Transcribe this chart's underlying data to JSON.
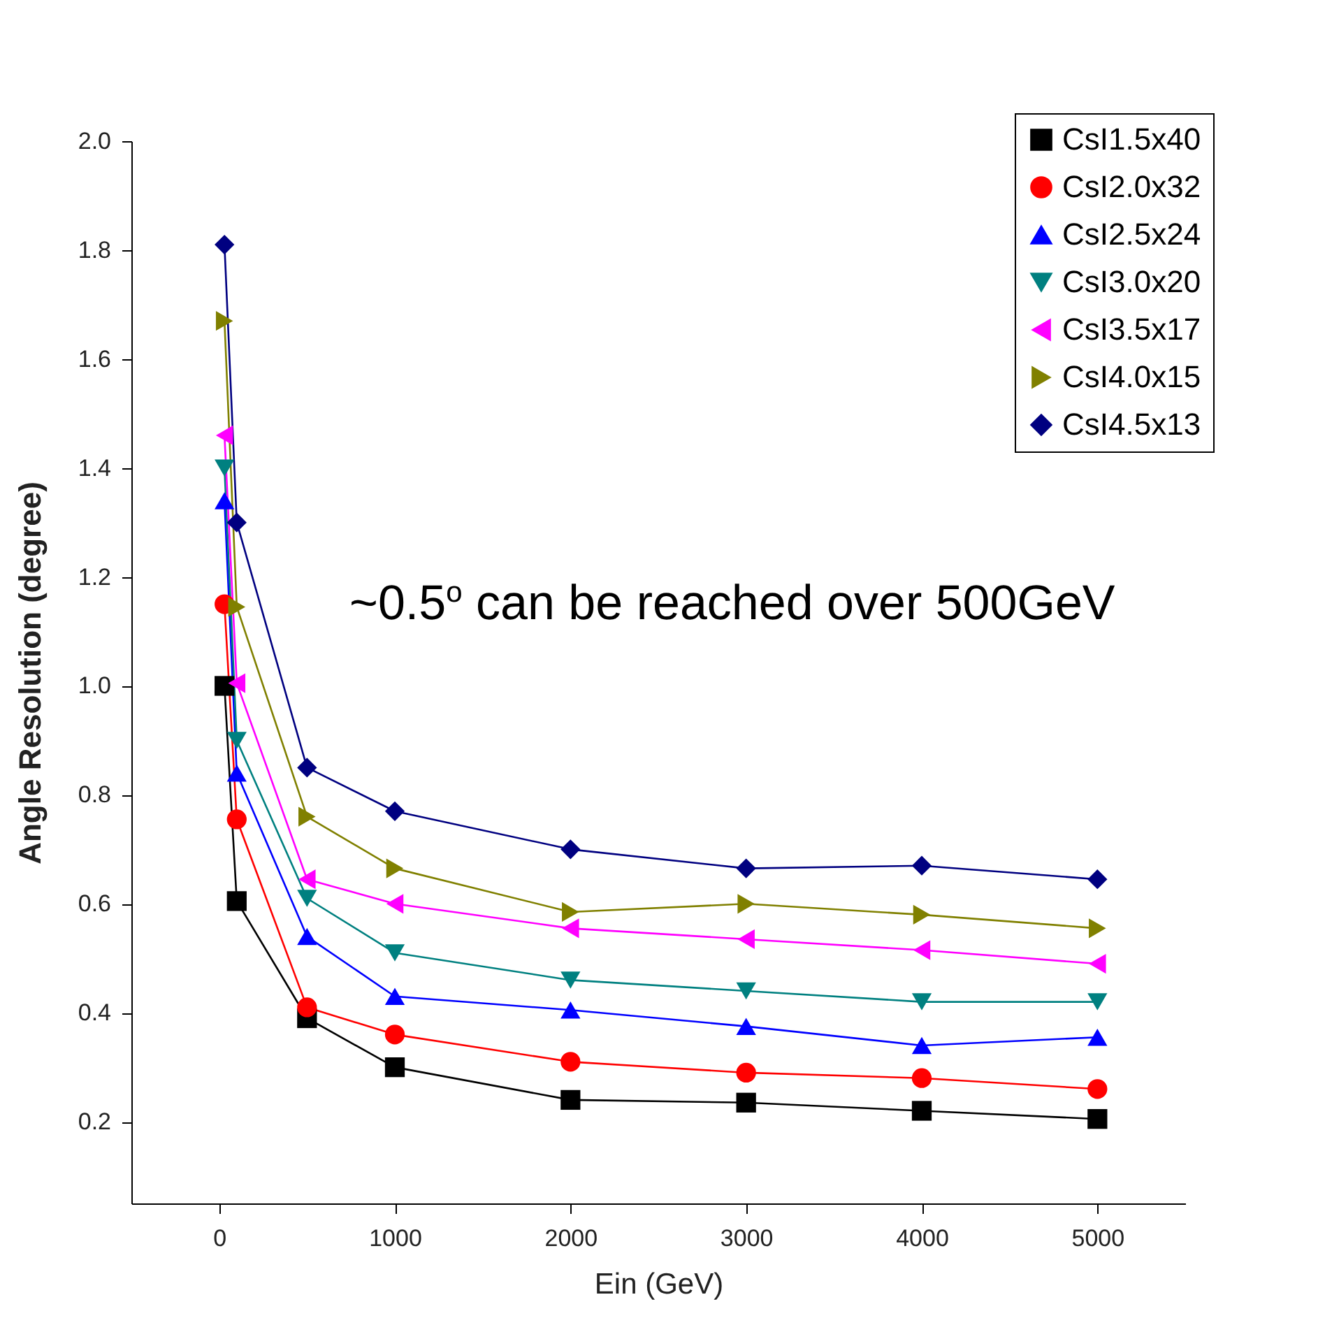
{
  "chart_data": {
    "type": "line",
    "xlabel": "Ein (GeV)",
    "ylabel": "Angle Resolution (degree)",
    "x": [
      30,
      100,
      500,
      1000,
      2000,
      3000,
      4000,
      5000
    ],
    "series": [
      {
        "name": "CsI1.5x40",
        "color": "#000000",
        "marker": "square",
        "values": [
          1.0,
          0.605,
          0.39,
          0.3,
          0.24,
          0.235,
          0.22,
          0.205
        ]
      },
      {
        "name": "CsI2.0x32",
        "color": "#ff0000",
        "marker": "circle",
        "values": [
          1.15,
          0.755,
          0.41,
          0.36,
          0.31,
          0.29,
          0.28,
          0.26
        ]
      },
      {
        "name": "CsI2.5x24",
        "color": "#0000ff",
        "marker": "triangle-up",
        "values": [
          1.34,
          0.84,
          0.54,
          0.43,
          0.405,
          0.375,
          0.34,
          0.355
        ]
      },
      {
        "name": "CsI3.0x20",
        "color": "#008080",
        "marker": "triangle-down",
        "values": [
          1.4,
          0.9,
          0.61,
          0.51,
          0.46,
          0.44,
          0.42,
          0.42
        ]
      },
      {
        "name": "CsI3.5x17",
        "color": "#ff00ff",
        "marker": "triangle-left",
        "values": [
          1.46,
          1.005,
          0.645,
          0.6,
          0.555,
          0.535,
          0.515,
          0.49
        ]
      },
      {
        "name": "CsI4.0x15",
        "color": "#808000",
        "marker": "triangle-right",
        "values": [
          1.67,
          1.145,
          0.76,
          0.665,
          0.585,
          0.6,
          0.58,
          0.555
        ]
      },
      {
        "name": "CsI4.5x13",
        "color": "#000080",
        "marker": "diamond",
        "values": [
          1.81,
          1.3,
          0.85,
          0.77,
          0.7,
          0.665,
          0.67,
          0.645
        ]
      }
    ],
    "xlim": [
      -500,
      5500
    ],
    "xticks": [
      0,
      1000,
      2000,
      3000,
      4000,
      5000
    ],
    "ylim": [
      0.05,
      2.0
    ],
    "yticks": [
      {
        "value": 0.2,
        "label": "0.2"
      },
      {
        "value": 0.4,
        "label": "0.4"
      },
      {
        "value": 0.6,
        "label": "0.6"
      },
      {
        "value": 0.8,
        "label": "0.8"
      },
      {
        "value": 1.0,
        "label": "1.0"
      },
      {
        "value": 1.2,
        "label": "1.2"
      },
      {
        "value": 1.4,
        "label": "1.4"
      },
      {
        "value": 1.6,
        "label": "1.6"
      },
      {
        "value": 1.8,
        "label": "1.8"
      },
      {
        "value": 2.0,
        "label": "2.0"
      }
    ],
    "grid": false,
    "legend": "top right",
    "annotations": [
      "~0.5$^{o}$ can be reached over 500GeV"
    ]
  }
}
